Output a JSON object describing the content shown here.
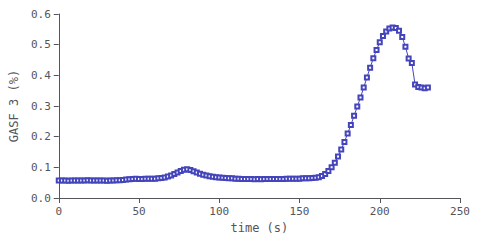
{
  "chart_data": {
    "type": "line",
    "xlabel": "time (s)",
    "ylabel": "GASF 3 (%)",
    "color": "#4444bb",
    "marker": "square",
    "grid": false,
    "xlim": [
      0,
      250
    ],
    "ylim": [
      0,
      0.6
    ],
    "xticks": [
      0,
      50,
      100,
      150,
      200,
      250
    ],
    "yticks": [
      {
        "value": 0,
        "label": "0.0"
      },
      0.1,
      0.2,
      0.3,
      0.4,
      0.5,
      0.6
    ],
    "x": [
      0,
      2,
      4,
      6,
      8,
      10,
      12,
      14,
      16,
      18,
      20,
      22,
      24,
      26,
      28,
      30,
      32,
      34,
      36,
      38,
      40,
      42,
      44,
      46,
      48,
      50,
      52,
      54,
      56,
      58,
      60,
      62,
      64,
      66,
      68,
      70,
      72,
      74,
      76,
      78,
      80,
      82,
      84,
      86,
      88,
      90,
      92,
      94,
      96,
      98,
      100,
      102,
      104,
      106,
      108,
      110,
      112,
      114,
      116,
      118,
      120,
      122,
      124,
      126,
      128,
      130,
      132,
      134,
      136,
      138,
      140,
      142,
      144,
      146,
      148,
      150,
      152,
      154,
      156,
      158,
      160,
      162,
      164,
      166,
      168,
      170,
      172,
      174,
      176,
      178,
      180,
      182,
      184,
      186,
      188,
      190,
      192,
      194,
      196,
      198,
      200,
      202,
      204,
      206,
      208,
      210,
      212,
      214,
      216,
      218,
      220,
      222,
      224,
      226,
      228,
      230
    ],
    "values": [
      0.057,
      0.057,
      0.057,
      0.056,
      0.057,
      0.057,
      0.057,
      0.057,
      0.057,
      0.058,
      0.057,
      0.057,
      0.057,
      0.057,
      0.057,
      0.056,
      0.057,
      0.057,
      0.058,
      0.058,
      0.059,
      0.06,
      0.061,
      0.062,
      0.063,
      0.062,
      0.062,
      0.063,
      0.063,
      0.063,
      0.063,
      0.064,
      0.065,
      0.067,
      0.07,
      0.073,
      0.078,
      0.083,
      0.088,
      0.092,
      0.094,
      0.091,
      0.087,
      0.083,
      0.079,
      0.076,
      0.073,
      0.071,
      0.069,
      0.068,
      0.067,
      0.066,
      0.065,
      0.064,
      0.064,
      0.063,
      0.063,
      0.062,
      0.062,
      0.062,
      0.062,
      0.061,
      0.062,
      0.061,
      0.062,
      0.062,
      0.062,
      0.062,
      0.062,
      0.062,
      0.062,
      0.063,
      0.063,
      0.063,
      0.063,
      0.063,
      0.064,
      0.064,
      0.064,
      0.065,
      0.066,
      0.068,
      0.072,
      0.078,
      0.088,
      0.1,
      0.115,
      0.135,
      0.158,
      0.183,
      0.21,
      0.238,
      0.268,
      0.298,
      0.328,
      0.36,
      0.393,
      0.425,
      0.456,
      0.483,
      0.508,
      0.528,
      0.543,
      0.553,
      0.556,
      0.554,
      0.545,
      0.525,
      0.493,
      0.455,
      0.44,
      0.37,
      0.362,
      0.36,
      0.358,
      0.36
    ]
  }
}
